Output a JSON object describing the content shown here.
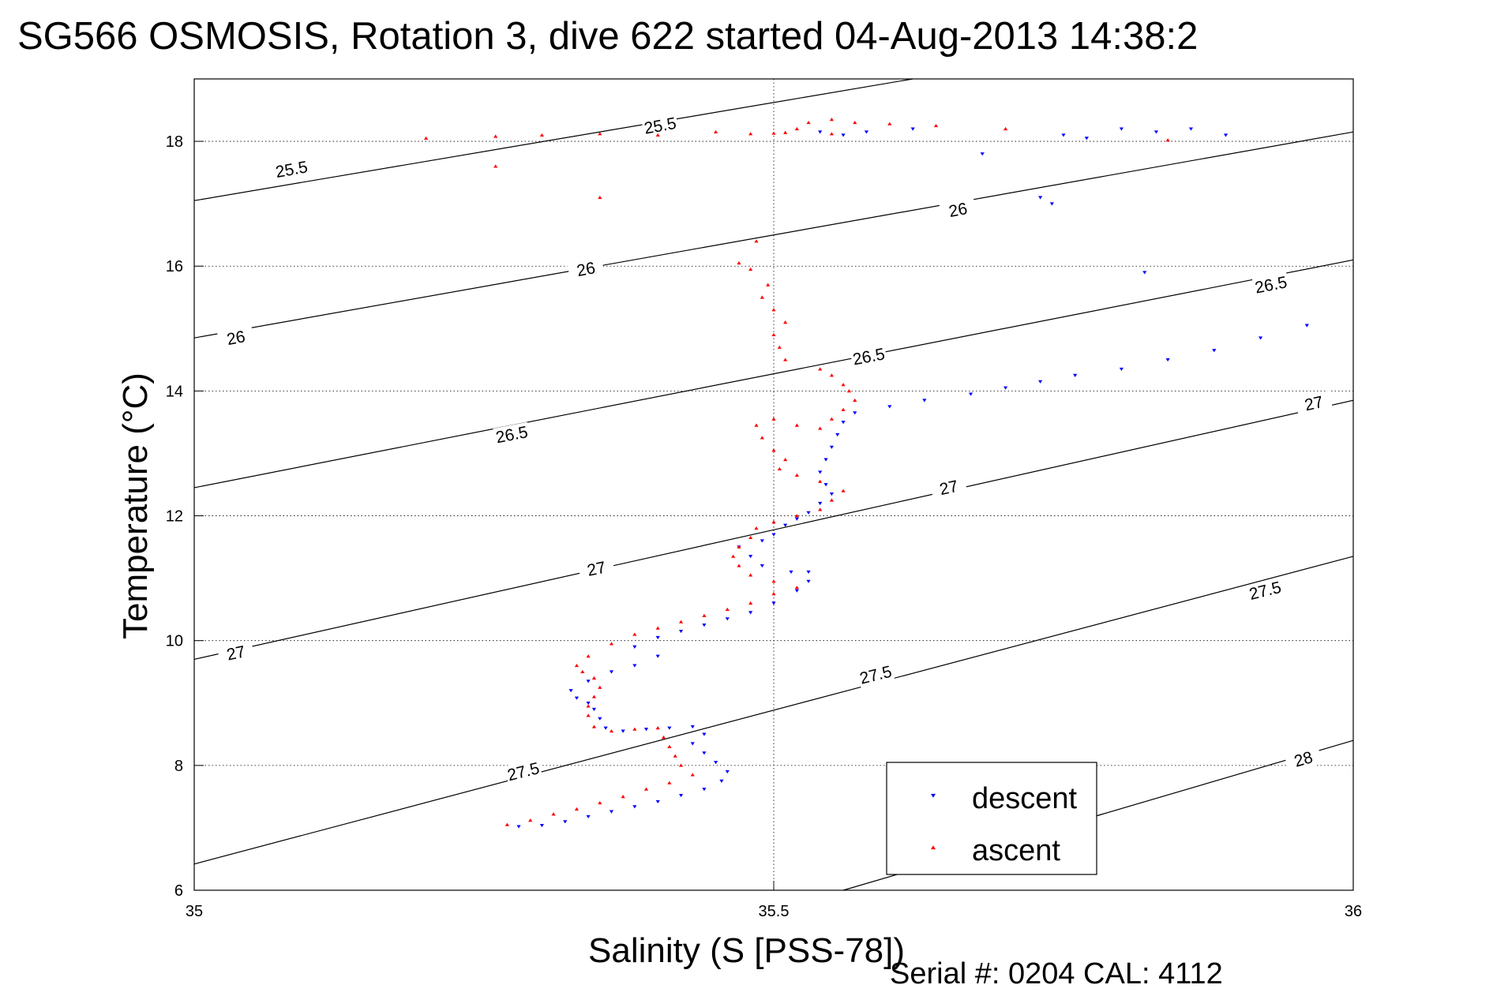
{
  "chart_data": {
    "type": "scatter",
    "title": "SG566 OSMOSIS, Rotation 3, dive 622 started 04-Aug-2013 14:38:2",
    "xlabel": "Salinity (S [PSS-78])",
    "ylabel": "Temperature (°C)",
    "xlim": [
      35,
      36
    ],
    "ylim": [
      6,
      19
    ],
    "xticks": [
      "35",
      "35.5",
      "36"
    ],
    "yticks": [
      "6",
      "8",
      "10",
      "12",
      "14",
      "16",
      "18"
    ],
    "grid": true,
    "legend": {
      "position": "bottom-right",
      "entries": [
        "descent",
        "ascent"
      ]
    },
    "footer": "Serial #: 0204  CAL: 4112",
    "contours": [
      {
        "label": "25.5",
        "points": [
          [
            35,
            17.05
          ],
          [
            35.62,
            19.0
          ]
        ]
      },
      {
        "label": "26",
        "points": [
          [
            35,
            14.85
          ],
          [
            36,
            18.15
          ]
        ]
      },
      {
        "label": "26.5",
        "points": [
          [
            35,
            12.45
          ],
          [
            36,
            16.1
          ]
        ]
      },
      {
        "label": "27",
        "points": [
          [
            35,
            9.7
          ],
          [
            36,
            13.85
          ]
        ]
      },
      {
        "label": "27.5",
        "points": [
          [
            35,
            6.42
          ],
          [
            36,
            11.35
          ]
        ]
      },
      {
        "label": "28",
        "points": [
          [
            35.56,
            6.0
          ],
          [
            36,
            8.4
          ]
        ]
      }
    ],
    "contour_labels": [
      {
        "text": "25.5",
        "x": 35.084,
        "y": 17.55,
        "angle": -10
      },
      {
        "text": "25.5",
        "x": 35.402,
        "y": 18.25,
        "angle": -10
      },
      {
        "text": "26",
        "x": 35.036,
        "y": 14.85,
        "angle": -11
      },
      {
        "text": "26",
        "x": 35.338,
        "y": 15.95,
        "angle": -11
      },
      {
        "text": "26",
        "x": 35.659,
        "y": 16.9,
        "angle": -11
      },
      {
        "text": "26.5",
        "x": 35.274,
        "y": 13.3,
        "angle": -11
      },
      {
        "text": "26.5",
        "x": 35.582,
        "y": 14.55,
        "angle": -11
      },
      {
        "text": "26.5",
        "x": 35.929,
        "y": 15.7,
        "angle": -11
      },
      {
        "text": "27",
        "x": 35.036,
        "y": 9.8,
        "angle": -12
      },
      {
        "text": "27",
        "x": 35.347,
        "y": 11.15,
        "angle": -12
      },
      {
        "text": "27",
        "x": 35.651,
        "y": 12.45,
        "angle": -12
      },
      {
        "text": "27",
        "x": 35.966,
        "y": 13.8,
        "angle": -12
      },
      {
        "text": "27.5",
        "x": 35.284,
        "y": 7.9,
        "angle": -14
      },
      {
        "text": "27.5",
        "x": 35.588,
        "y": 9.45,
        "angle": -14
      },
      {
        "text": "27.5",
        "x": 35.924,
        "y": 10.8,
        "angle": -14
      },
      {
        "text": "28",
        "x": 35.957,
        "y": 8.1,
        "angle": -16
      }
    ],
    "series": [
      {
        "name": "descent",
        "color": "#0000ff",
        "marker": "triangle-down",
        "points": [
          [
            35.28,
            7.02
          ],
          [
            35.3,
            7.04
          ],
          [
            35.32,
            7.1
          ],
          [
            35.34,
            7.18
          ],
          [
            35.36,
            7.26
          ],
          [
            35.38,
            7.34
          ],
          [
            35.4,
            7.42
          ],
          [
            35.42,
            7.52
          ],
          [
            35.44,
            7.62
          ],
          [
            35.455,
            7.75
          ],
          [
            35.46,
            7.9
          ],
          [
            35.45,
            8.05
          ],
          [
            35.44,
            8.2
          ],
          [
            35.43,
            8.35
          ],
          [
            35.44,
            8.5
          ],
          [
            35.43,
            8.62
          ],
          [
            35.41,
            8.6
          ],
          [
            35.39,
            8.58
          ],
          [
            35.37,
            8.55
          ],
          [
            35.355,
            8.6
          ],
          [
            35.35,
            8.75
          ],
          [
            35.345,
            8.9
          ],
          [
            35.34,
            9.0
          ],
          [
            35.33,
            9.08
          ],
          [
            35.325,
            9.2
          ],
          [
            35.34,
            9.35
          ],
          [
            35.36,
            9.5
          ],
          [
            35.38,
            9.6
          ],
          [
            35.4,
            9.75
          ],
          [
            35.38,
            9.9
          ],
          [
            35.4,
            10.05
          ],
          [
            35.42,
            10.15
          ],
          [
            35.44,
            10.25
          ],
          [
            35.46,
            10.35
          ],
          [
            35.48,
            10.45
          ],
          [
            35.5,
            10.6
          ],
          [
            35.52,
            10.8
          ],
          [
            35.53,
            10.95
          ],
          [
            35.53,
            11.1
          ],
          [
            35.515,
            11.1
          ],
          [
            35.49,
            11.2
          ],
          [
            35.48,
            11.35
          ],
          [
            35.47,
            11.5
          ],
          [
            35.49,
            11.6
          ],
          [
            35.5,
            11.7
          ],
          [
            35.51,
            11.85
          ],
          [
            35.52,
            11.95
          ],
          [
            35.53,
            12.05
          ],
          [
            35.54,
            12.2
          ],
          [
            35.55,
            12.35
          ],
          [
            35.545,
            12.5
          ],
          [
            35.54,
            12.7
          ],
          [
            35.545,
            12.9
          ],
          [
            35.55,
            13.1
          ],
          [
            35.555,
            13.3
          ],
          [
            35.56,
            13.5
          ],
          [
            35.57,
            13.65
          ],
          [
            35.6,
            13.75
          ],
          [
            35.63,
            13.85
          ],
          [
            35.67,
            13.95
          ],
          [
            35.7,
            14.05
          ],
          [
            35.73,
            14.15
          ],
          [
            35.76,
            14.25
          ],
          [
            35.8,
            14.35
          ],
          [
            35.84,
            14.5
          ],
          [
            35.88,
            14.65
          ],
          [
            35.92,
            14.85
          ],
          [
            35.96,
            15.05
          ],
          [
            35.75,
            18.1
          ],
          [
            35.77,
            18.05
          ],
          [
            35.8,
            18.2
          ],
          [
            35.83,
            18.15
          ],
          [
            35.86,
            18.2
          ],
          [
            35.89,
            18.1
          ],
          [
            35.74,
            17.0
          ],
          [
            35.73,
            17.1
          ],
          [
            35.82,
            15.9
          ],
          [
            35.58,
            18.15
          ],
          [
            35.62,
            18.2
          ],
          [
            35.56,
            18.1
          ],
          [
            35.54,
            18.15
          ],
          [
            35.68,
            17.8
          ]
        ]
      },
      {
        "name": "ascent",
        "color": "#ff0000",
        "marker": "triangle-up",
        "points": [
          [
            35.27,
            7.05
          ],
          [
            35.29,
            7.12
          ],
          [
            35.31,
            7.22
          ],
          [
            35.33,
            7.3
          ],
          [
            35.35,
            7.4
          ],
          [
            35.37,
            7.5
          ],
          [
            35.39,
            7.62
          ],
          [
            35.41,
            7.72
          ],
          [
            35.43,
            7.85
          ],
          [
            35.42,
            8.0
          ],
          [
            35.415,
            8.15
          ],
          [
            35.41,
            8.3
          ],
          [
            35.405,
            8.45
          ],
          [
            35.4,
            8.6
          ],
          [
            35.38,
            8.58
          ],
          [
            35.36,
            8.55
          ],
          [
            35.345,
            8.62
          ],
          [
            35.34,
            8.8
          ],
          [
            35.34,
            8.95
          ],
          [
            35.345,
            9.1
          ],
          [
            35.35,
            9.25
          ],
          [
            35.345,
            9.4
          ],
          [
            35.335,
            9.5
          ],
          [
            35.33,
            9.6
          ],
          [
            35.34,
            9.75
          ],
          [
            35.36,
            9.95
          ],
          [
            35.38,
            10.1
          ],
          [
            35.4,
            10.2
          ],
          [
            35.42,
            10.3
          ],
          [
            35.44,
            10.4
          ],
          [
            35.46,
            10.5
          ],
          [
            35.48,
            10.6
          ],
          [
            35.5,
            10.75
          ],
          [
            35.52,
            10.85
          ],
          [
            35.5,
            10.95
          ],
          [
            35.48,
            11.05
          ],
          [
            35.47,
            11.2
          ],
          [
            35.465,
            11.35
          ],
          [
            35.47,
            11.5
          ],
          [
            35.48,
            11.65
          ],
          [
            35.485,
            11.8
          ],
          [
            35.5,
            11.9
          ],
          [
            35.52,
            12.0
          ],
          [
            35.54,
            12.1
          ],
          [
            35.55,
            12.25
          ],
          [
            35.56,
            12.4
          ],
          [
            35.54,
            12.55
          ],
          [
            35.52,
            12.65
          ],
          [
            35.505,
            12.75
          ],
          [
            35.51,
            12.9
          ],
          [
            35.5,
            13.05
          ],
          [
            35.49,
            13.25
          ],
          [
            35.485,
            13.45
          ],
          [
            35.5,
            13.55
          ],
          [
            35.52,
            13.45
          ],
          [
            35.54,
            13.4
          ],
          [
            35.55,
            13.55
          ],
          [
            35.56,
            13.7
          ],
          [
            35.57,
            13.85
          ],
          [
            35.565,
            14.0
          ],
          [
            35.56,
            14.1
          ],
          [
            35.55,
            14.25
          ],
          [
            35.54,
            14.35
          ],
          [
            35.51,
            14.5
          ],
          [
            35.505,
            14.7
          ],
          [
            35.5,
            14.9
          ],
          [
            35.51,
            15.1
          ],
          [
            35.5,
            15.3
          ],
          [
            35.49,
            15.5
          ],
          [
            35.495,
            15.7
          ],
          [
            35.48,
            15.95
          ],
          [
            35.47,
            16.05
          ],
          [
            35.485,
            16.4
          ],
          [
            35.2,
            18.05
          ],
          [
            35.26,
            18.08
          ],
          [
            35.3,
            18.1
          ],
          [
            35.35,
            18.12
          ],
          [
            35.4,
            18.1
          ],
          [
            35.45,
            18.15
          ],
          [
            35.48,
            18.12
          ],
          [
            35.5,
            18.13
          ],
          [
            35.52,
            18.2
          ],
          [
            35.53,
            18.3
          ],
          [
            35.55,
            18.35
          ],
          [
            35.57,
            18.3
          ],
          [
            35.6,
            18.28
          ],
          [
            35.64,
            18.25
          ],
          [
            35.7,
            18.2
          ],
          [
            35.84,
            18.02
          ],
          [
            35.26,
            17.6
          ],
          [
            35.35,
            17.1
          ],
          [
            35.55,
            18.12
          ],
          [
            35.51,
            18.14
          ]
        ]
      }
    ]
  }
}
